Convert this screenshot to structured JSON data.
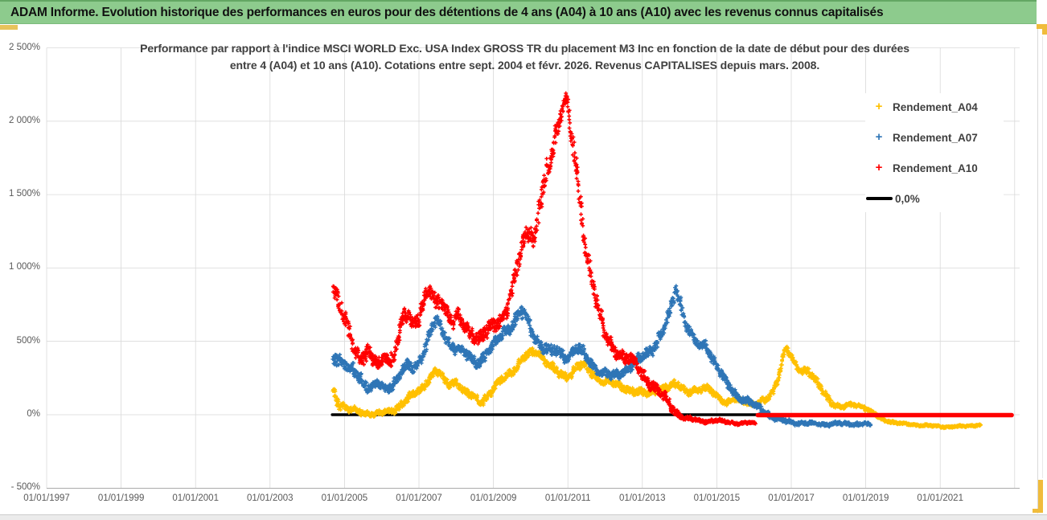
{
  "header": {
    "title": "ADAM Informe. Evolution historique des performances en euros pour des détentions de 4 ans (A04) à 10 ans (A10) avec les revenus connus capitalisés"
  },
  "chart": {
    "title_line1": "Performance par rapport à l'indice MSCI WORLD Exc. USA Index GROSS TR  du placement M3 Inc en fonction de la date de début pour des durées",
    "title_line2": "entre 4 (A04) et 10 ans (A10). Cotations entre sept. 2004 et févr. 2026. Revenus CAPITALISES depuis mars. 2008."
  },
  "chart_data": {
    "type": "scatter",
    "marker": "+",
    "points_encoding": "[decimal_year_of_start_date, performance_pct_band_center, band_half_height_pct]",
    "x_axis": {
      "range": [
        1997,
        2023.17
      ],
      "tick_years": [
        1997,
        1999,
        2001,
        2003,
        2005,
        2007,
        2009,
        2011,
        2013,
        2015,
        2017,
        2019,
        2021
      ],
      "ticks": [
        "01/01/1997",
        "01/01/1999",
        "01/01/2001",
        "01/01/2003",
        "01/01/2005",
        "01/01/2007",
        "01/01/2009",
        "01/01/2011",
        "01/01/2013",
        "01/01/2015",
        "01/01/2017",
        "01/01/2019",
        "01/01/2021"
      ],
      "gridline_years": [
        1997,
        1999,
        2001,
        2003,
        2005,
        2007,
        2009,
        2011,
        2013,
        2015,
        2017,
        2019,
        2021,
        2023
      ],
      "grid": true
    },
    "y_axis": {
      "range": [
        -500,
        2500
      ],
      "tick_values": [
        2500,
        2000,
        1500,
        1000,
        500,
        0,
        -500
      ],
      "tick_labels": [
        "2 500%",
        "2 000%",
        "1 500%",
        "1 000%",
        "500%",
        "0%",
        "- 500%"
      ],
      "gridline_values": [
        0,
        500,
        1000,
        1500,
        2000,
        2500
      ],
      "grid": true
    },
    "legend_position": "right",
    "baseline": {
      "label": "0,0%",
      "value": 0,
      "color": "#000000",
      "from": 2004.67,
      "to": 2022.92
    },
    "series": [
      {
        "name": "Rendement_A04",
        "color": "#FFC000",
        "points": [
          [
            2004.7,
            150,
            80
          ],
          [
            2004.9,
            70,
            45
          ],
          [
            2005.1,
            35,
            35
          ],
          [
            2005.35,
            20,
            32
          ],
          [
            2005.6,
            10,
            30
          ],
          [
            2005.85,
            5,
            30
          ],
          [
            2006.1,
            15,
            30
          ],
          [
            2006.35,
            35,
            35
          ],
          [
            2006.6,
            90,
            40
          ],
          [
            2006.85,
            130,
            40
          ],
          [
            2007.05,
            170,
            40
          ],
          [
            2007.25,
            240,
            40
          ],
          [
            2007.45,
            300,
            40
          ],
          [
            2007.62,
            250,
            40
          ],
          [
            2007.8,
            210,
            40
          ],
          [
            2008.0,
            230,
            40
          ],
          [
            2008.2,
            160,
            40
          ],
          [
            2008.45,
            120,
            40
          ],
          [
            2008.65,
            90,
            40
          ],
          [
            2008.85,
            130,
            40
          ],
          [
            2009.05,
            190,
            40
          ],
          [
            2009.3,
            250,
            45
          ],
          [
            2009.55,
            310,
            45
          ],
          [
            2009.8,
            380,
            45
          ],
          [
            2010.05,
            420,
            45
          ],
          [
            2010.2,
            430,
            40
          ],
          [
            2010.4,
            370,
            45
          ],
          [
            2010.6,
            310,
            45
          ],
          [
            2010.8,
            270,
            45
          ],
          [
            2011.0,
            260,
            40
          ],
          [
            2011.2,
            320,
            45
          ],
          [
            2011.4,
            340,
            45
          ],
          [
            2011.6,
            290,
            45
          ],
          [
            2011.8,
            250,
            40
          ],
          [
            2012.0,
            230,
            40
          ],
          [
            2012.3,
            200,
            40
          ],
          [
            2012.6,
            180,
            40
          ],
          [
            2012.9,
            150,
            40
          ],
          [
            2013.15,
            140,
            40
          ],
          [
            2013.4,
            175,
            40
          ],
          [
            2013.7,
            185,
            40
          ],
          [
            2013.95,
            205,
            40
          ],
          [
            2014.2,
            165,
            40
          ],
          [
            2014.5,
            160,
            35
          ],
          [
            2014.8,
            185,
            35
          ],
          [
            2015.05,
            120,
            35
          ],
          [
            2015.25,
            70,
            30
          ],
          [
            2015.5,
            105,
            30
          ],
          [
            2015.75,
            95,
            30
          ],
          [
            2016.0,
            65,
            30
          ],
          [
            2016.25,
            90,
            35
          ],
          [
            2016.5,
            160,
            45
          ],
          [
            2016.7,
            300,
            50
          ],
          [
            2016.85,
            450,
            35
          ],
          [
            2017.0,
            390,
            40
          ],
          [
            2017.2,
            310,
            40
          ],
          [
            2017.45,
            300,
            35
          ],
          [
            2017.7,
            210,
            40
          ],
          [
            2017.95,
            130,
            35
          ],
          [
            2018.15,
            70,
            30
          ],
          [
            2018.35,
            45,
            22
          ],
          [
            2018.55,
            65,
            22
          ],
          [
            2018.75,
            70,
            22
          ],
          [
            2018.95,
            50,
            22
          ],
          [
            2019.15,
            15,
            22
          ],
          [
            2019.4,
            -25,
            18
          ],
          [
            2019.7,
            -50,
            15
          ],
          [
            2020.0,
            -62,
            13
          ],
          [
            2020.4,
            -70,
            12
          ],
          [
            2020.8,
            -78,
            12
          ],
          [
            2021.2,
            -82,
            11
          ],
          [
            2021.6,
            -80,
            11
          ],
          [
            2021.95,
            -72,
            11
          ],
          [
            2022.1,
            -68,
            11
          ]
        ]
      },
      {
        "name": "Rendement_A07",
        "color": "#2E75B6",
        "points": [
          [
            2004.7,
            430,
            90
          ],
          [
            2004.9,
            360,
            70
          ],
          [
            2005.1,
            310,
            60
          ],
          [
            2005.3,
            290,
            60
          ],
          [
            2005.5,
            230,
            60
          ],
          [
            2005.7,
            180,
            50
          ],
          [
            2005.9,
            210,
            50
          ],
          [
            2006.1,
            170,
            50
          ],
          [
            2006.3,
            210,
            50
          ],
          [
            2006.5,
            280,
            55
          ],
          [
            2006.7,
            330,
            55
          ],
          [
            2006.9,
            310,
            55
          ],
          [
            2007.1,
            420,
            60
          ],
          [
            2007.3,
            560,
            60
          ],
          [
            2007.48,
            640,
            50
          ],
          [
            2007.65,
            560,
            60
          ],
          [
            2007.85,
            480,
            55
          ],
          [
            2008.05,
            450,
            55
          ],
          [
            2008.25,
            410,
            55
          ],
          [
            2008.5,
            360,
            60
          ],
          [
            2008.75,
            390,
            60
          ],
          [
            2009.0,
            460,
            60
          ],
          [
            2009.25,
            560,
            60
          ],
          [
            2009.5,
            610,
            60
          ],
          [
            2009.75,
            700,
            70
          ],
          [
            2009.9,
            650,
            60
          ],
          [
            2010.05,
            560,
            60
          ],
          [
            2010.25,
            480,
            60
          ],
          [
            2010.5,
            430,
            60
          ],
          [
            2010.75,
            430,
            60
          ],
          [
            2011.0,
            390,
            55
          ],
          [
            2011.2,
            450,
            60
          ],
          [
            2011.45,
            410,
            55
          ],
          [
            2011.7,
            330,
            55
          ],
          [
            2011.95,
            280,
            50
          ],
          [
            2012.2,
            260,
            50
          ],
          [
            2012.5,
            300,
            55
          ],
          [
            2012.8,
            350,
            55
          ],
          [
            2013.05,
            400,
            55
          ],
          [
            2013.3,
            460,
            60
          ],
          [
            2013.55,
            560,
            60
          ],
          [
            2013.75,
            700,
            70
          ],
          [
            2013.9,
            860,
            60
          ],
          [
            2014.0,
            790,
            70
          ],
          [
            2014.15,
            640,
            60
          ],
          [
            2014.35,
            520,
            55
          ],
          [
            2014.55,
            460,
            50
          ],
          [
            2014.7,
            480,
            45
          ],
          [
            2014.9,
            380,
            50
          ],
          [
            2015.1,
            280,
            50
          ],
          [
            2015.35,
            180,
            45
          ],
          [
            2015.6,
            120,
            40
          ],
          [
            2015.85,
            90,
            40
          ],
          [
            2016.1,
            50,
            40
          ],
          [
            2016.4,
            0,
            35
          ],
          [
            2016.7,
            -40,
            25
          ],
          [
            2017.0,
            -50,
            22
          ],
          [
            2017.4,
            -60,
            22
          ],
          [
            2017.8,
            -65,
            20
          ],
          [
            2018.2,
            -60,
            20
          ],
          [
            2018.6,
            -65,
            20
          ],
          [
            2018.95,
            -60,
            20
          ],
          [
            2019.15,
            -75,
            15
          ]
        ]
      },
      {
        "name": "Rendement_A10",
        "color": "#FF0000",
        "zero_tail": {
          "from": 2016.1,
          "to": 2022.92,
          "value": 0
        },
        "points": [
          [
            2004.7,
            880,
            90
          ],
          [
            2004.85,
            760,
            110
          ],
          [
            2005.0,
            640,
            90
          ],
          [
            2005.15,
            520,
            110
          ],
          [
            2005.3,
            450,
            90
          ],
          [
            2005.45,
            390,
            80
          ],
          [
            2005.6,
            430,
            90
          ],
          [
            2005.75,
            370,
            80
          ],
          [
            2005.95,
            330,
            70
          ],
          [
            2006.1,
            420,
            80
          ],
          [
            2006.25,
            360,
            80
          ],
          [
            2006.4,
            480,
            90
          ],
          [
            2006.55,
            620,
            90
          ],
          [
            2006.7,
            680,
            80
          ],
          [
            2006.85,
            620,
            80
          ],
          [
            2007.0,
            680,
            90
          ],
          [
            2007.15,
            790,
            80
          ],
          [
            2007.3,
            840,
            70
          ],
          [
            2007.45,
            750,
            80
          ],
          [
            2007.6,
            780,
            80
          ],
          [
            2007.75,
            700,
            80
          ],
          [
            2007.9,
            630,
            80
          ],
          [
            2008.05,
            660,
            80
          ],
          [
            2008.2,
            600,
            80
          ],
          [
            2008.4,
            560,
            80
          ],
          [
            2008.6,
            520,
            80
          ],
          [
            2008.8,
            560,
            80
          ],
          [
            2009.0,
            600,
            80
          ],
          [
            2009.2,
            650,
            80
          ],
          [
            2009.4,
            750,
            90
          ],
          [
            2009.6,
            950,
            110
          ],
          [
            2009.8,
            1150,
            120
          ],
          [
            2009.95,
            1280,
            100
          ],
          [
            2010.1,
            1180,
            110
          ],
          [
            2010.25,
            1450,
            120
          ],
          [
            2010.4,
            1580,
            120
          ],
          [
            2010.55,
            1750,
            110
          ],
          [
            2010.7,
            1950,
            110
          ],
          [
            2010.85,
            2130,
            110
          ],
          [
            2010.95,
            2180,
            90
          ],
          [
            2011.05,
            1980,
            120
          ],
          [
            2011.2,
            1700,
            130
          ],
          [
            2011.35,
            1380,
            130
          ],
          [
            2011.5,
            1100,
            120
          ],
          [
            2011.65,
            950,
            100
          ],
          [
            2011.8,
            750,
            100
          ],
          [
            2011.95,
            580,
            90
          ],
          [
            2012.1,
            480,
            70
          ],
          [
            2012.3,
            430,
            70
          ],
          [
            2012.55,
            390,
            70
          ],
          [
            2012.8,
            340,
            70
          ],
          [
            2013.0,
            280,
            70
          ],
          [
            2013.2,
            220,
            60
          ],
          [
            2013.45,
            150,
            60
          ],
          [
            2013.7,
            80,
            50
          ],
          [
            2013.95,
            10,
            40
          ],
          [
            2014.15,
            -25,
            25
          ],
          [
            2014.4,
            -35,
            20
          ],
          [
            2014.7,
            -45,
            18
          ],
          [
            2015.0,
            -40,
            18
          ],
          [
            2015.3,
            -50,
            15
          ],
          [
            2015.6,
            -60,
            15
          ],
          [
            2015.85,
            -55,
            15
          ],
          [
            2016.05,
            -60,
            12
          ]
        ]
      }
    ]
  }
}
